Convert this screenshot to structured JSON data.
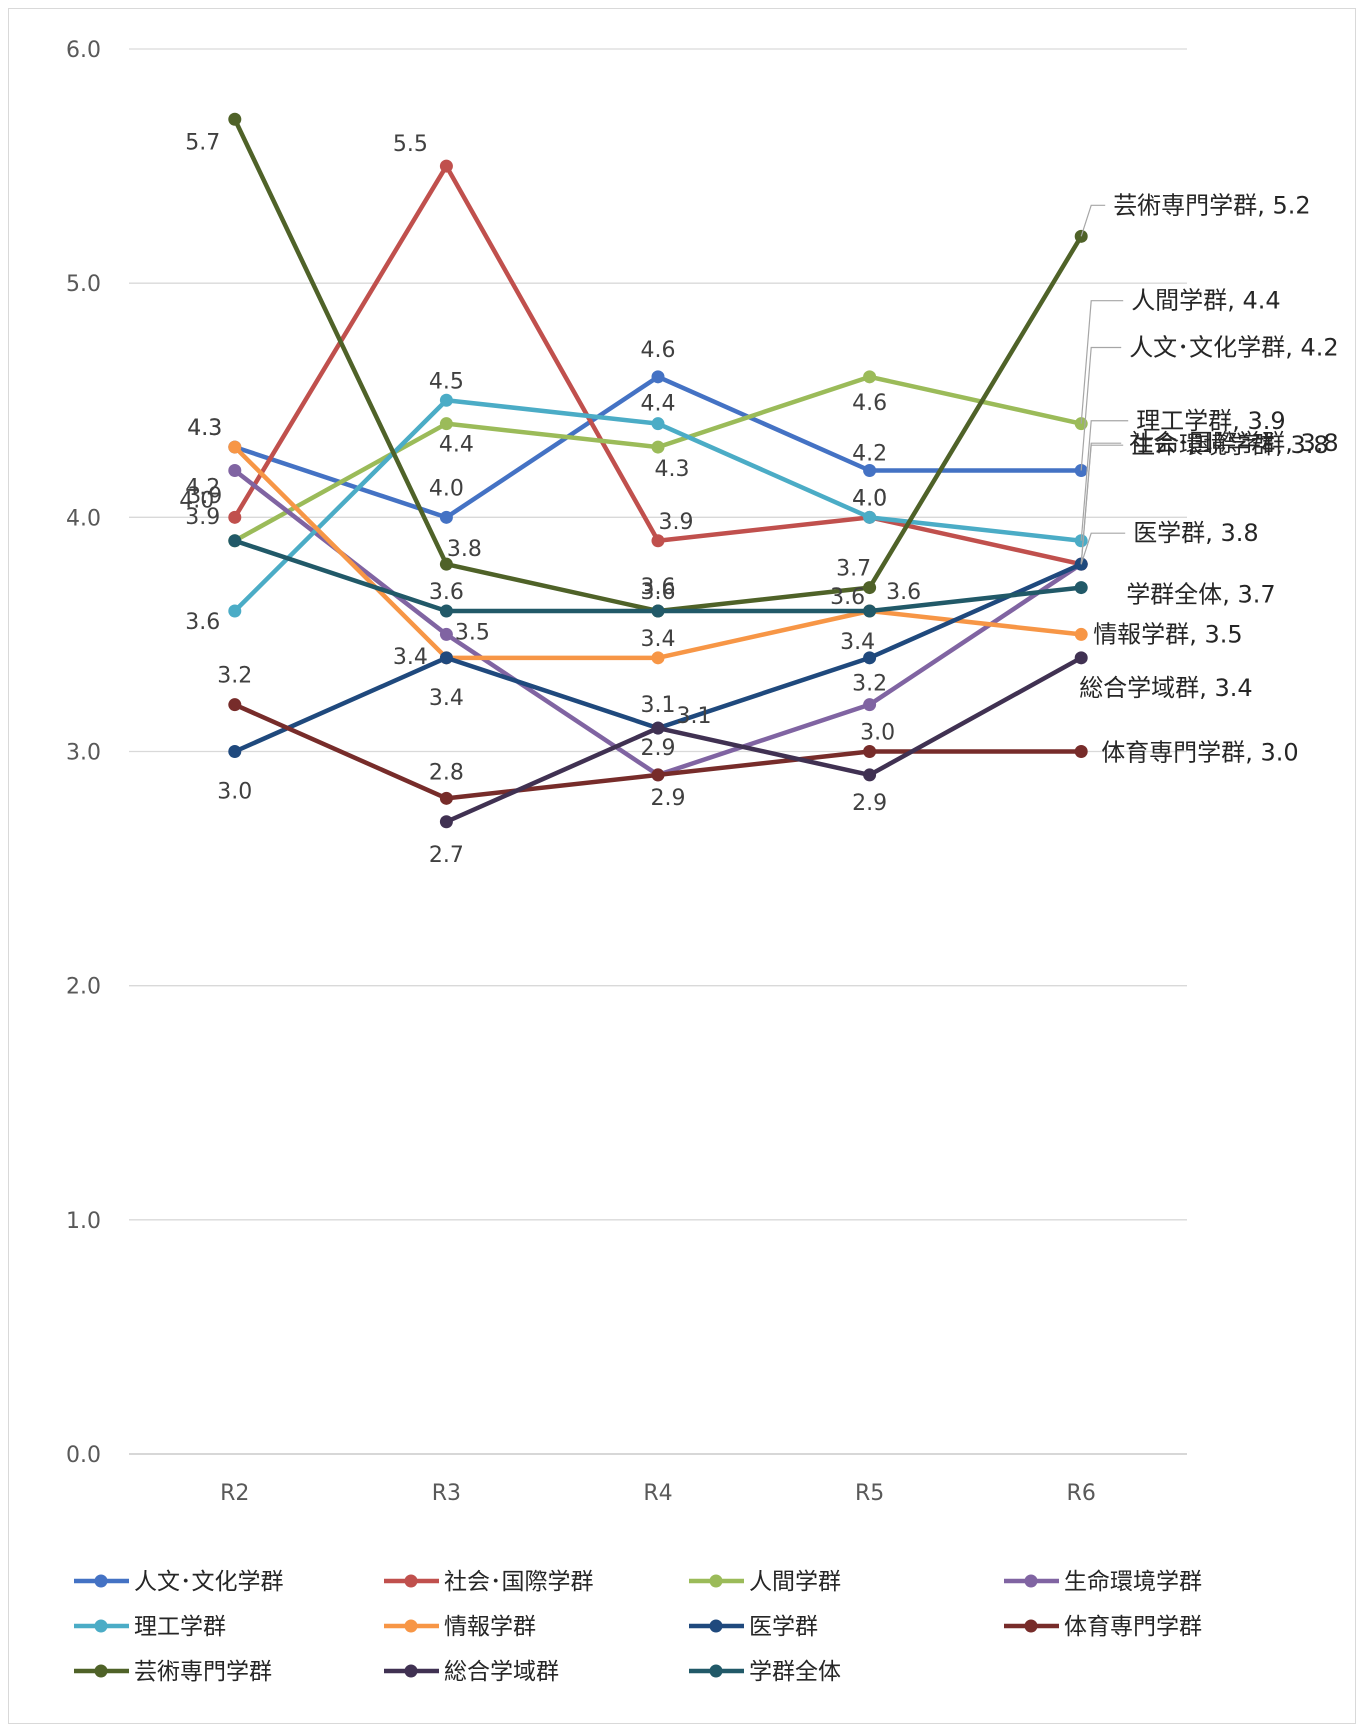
{
  "chart_data": {
    "type": "line",
    "title": "",
    "xlabel": "",
    "ylabel": "",
    "categories": [
      "R2",
      "R3",
      "R4",
      "R5",
      "R6"
    ],
    "ylim": [
      0,
      6
    ],
    "yticks": [
      "0.0",
      "1.0",
      "2.0",
      "3.0",
      "4.0",
      "5.0",
      "6.0"
    ],
    "grid": true,
    "legend_position": "bottom",
    "series": [
      {
        "name": "人文･文化学群",
        "color": "#4472C4",
        "values": [
          4.3,
          4.0,
          4.6,
          4.2,
          4.2
        ],
        "labels": [
          "4.3",
          "4.0",
          "4.6",
          "4.2",
          "4.2"
        ]
      },
      {
        "name": "社会･国際学群",
        "color": "#C0504D",
        "values": [
          4.0,
          5.5,
          3.9,
          4.0,
          3.8
        ],
        "labels": [
          "4.0",
          "5.5",
          "3.9",
          "4.0",
          "3.8"
        ]
      },
      {
        "name": "人間学群",
        "color": "#9BBB59",
        "values": [
          3.9,
          4.4,
          4.3,
          4.6,
          4.4
        ],
        "labels": [
          "3.9",
          "4.4",
          "4.3",
          "4.6",
          "4.4"
        ]
      },
      {
        "name": "生命環境学群",
        "color": "#8064A2",
        "values": [
          4.2,
          3.5,
          2.9,
          3.2,
          3.8
        ],
        "labels": [
          "4.2",
          "3.5",
          "2.9",
          "3.2",
          "3.8"
        ]
      },
      {
        "name": "理工学群",
        "color": "#4BACC6",
        "values": [
          3.6,
          4.5,
          4.4,
          4.0,
          3.9
        ],
        "labels": [
          "3.6",
          "4.5",
          "4.4",
          "4.0",
          "3.9"
        ]
      },
      {
        "name": "情報学群",
        "color": "#F79646",
        "values": [
          4.3,
          3.4,
          3.4,
          3.6,
          3.5
        ],
        "labels": [
          "4.3",
          "3.4",
          "3.4",
          "3.6",
          "3.5"
        ]
      },
      {
        "name": "医学群",
        "color": "#1F497D",
        "values": [
          3.0,
          3.4,
          3.1,
          3.4,
          3.8
        ],
        "labels": [
          "3.0",
          "3.4",
          "3.1",
          "3.4",
          "3.8"
        ]
      },
      {
        "name": "体育専門学群",
        "color": "#772C2A",
        "values": [
          3.2,
          2.8,
          2.9,
          3.0,
          3.0
        ],
        "labels": [
          "3.2",
          "2.8",
          "2.9",
          "3.0",
          "3.0"
        ]
      },
      {
        "name": "芸術専門学群",
        "color": "#4F6228",
        "values": [
          5.7,
          3.8,
          3.6,
          3.7,
          5.2
        ],
        "labels": [
          "5.7",
          "3.8",
          "3.6",
          "3.7",
          "5.2"
        ]
      },
      {
        "name": "総合学域群",
        "color": "#403152",
        "values": [
          null,
          2.7,
          3.1,
          2.9,
          3.4
        ],
        "labels": [
          null,
          "2.7",
          "3.1",
          "2.9",
          "3.4"
        ]
      },
      {
        "name": "学群全体",
        "color": "#215968",
        "values": [
          3.9,
          3.6,
          3.6,
          3.6,
          3.7
        ],
        "labels": [
          "3.9",
          "3.6",
          "3.6",
          "3.6",
          "3.7"
        ]
      }
    ]
  }
}
